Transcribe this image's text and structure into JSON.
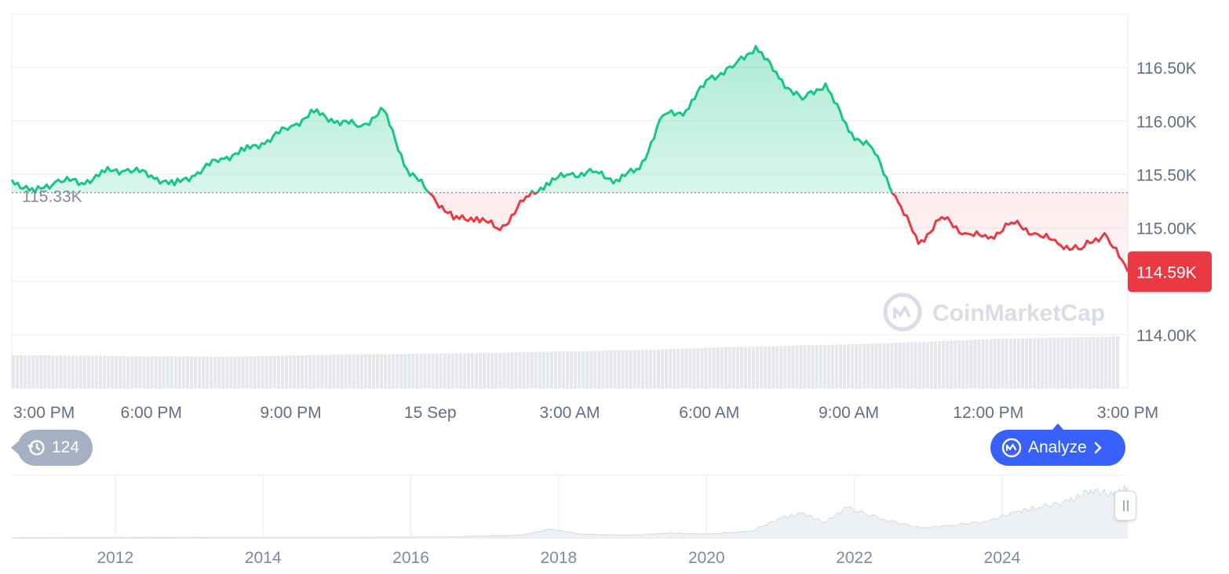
{
  "chart_data": {
    "type": "area",
    "asset_price_unit": "K",
    "y_axis": {
      "ticks": [
        "116.50K",
        "116.00K",
        "115.50K",
        "115.00K",
        "114.00K"
      ],
      "tick_values": [
        116.5,
        116.0,
        115.5,
        115.0,
        114.0
      ],
      "range": [
        113.5,
        117.0
      ],
      "position": "right"
    },
    "x_axis": {
      "ticks": [
        "3:00 PM",
        "6:00 PM",
        "9:00 PM",
        "15 Sep",
        "3:00 AM",
        "6:00 AM",
        "9:00 AM",
        "12:00 PM",
        "3:00 PM"
      ],
      "tick_hours": [
        0,
        3,
        6,
        9,
        12,
        15,
        18,
        21,
        24
      ],
      "range_hours": [
        0,
        24
      ]
    },
    "baseline": {
      "value": 115.33,
      "label": "115.33K"
    },
    "current": {
      "value": 114.59,
      "label": "114.59K"
    },
    "series": [
      {
        "x": [
          0,
          0.5,
          1,
          1.5,
          2,
          2.5,
          3,
          3.5,
          4,
          4.5,
          5,
          5.5,
          6,
          6.5,
          7,
          7.5,
          8,
          8.5,
          9,
          9.5,
          10,
          10.5,
          11,
          11.5,
          12,
          12.5,
          13,
          13.5,
          14,
          14.5,
          15,
          15.5,
          16,
          16.5,
          17,
          17.5,
          18,
          18.5,
          19,
          19.5,
          20,
          20.5,
          21,
          21.5,
          22,
          22.5,
          23,
          23.5,
          24
        ],
        "y": [
          115.45,
          115.33,
          115.45,
          115.42,
          115.52,
          115.55,
          115.49,
          115.4,
          115.52,
          115.65,
          115.72,
          115.82,
          115.95,
          116.08,
          116.0,
          115.95,
          116.1,
          115.55,
          115.32,
          115.08,
          115.1,
          114.98,
          115.25,
          115.42,
          115.5,
          115.52,
          115.45,
          115.55,
          116.05,
          116.1,
          116.4,
          116.5,
          116.7,
          116.4,
          116.2,
          116.35,
          115.9,
          115.75,
          115.3,
          114.85,
          115.1,
          114.95,
          114.9,
          115.05,
          114.95,
          114.85,
          114.8,
          114.95,
          114.59
        ]
      }
    ],
    "volume": {
      "relative_levels": [
        0.6,
        0.6,
        0.59,
        0.59,
        0.58,
        0.58,
        0.58,
        0.57,
        0.58,
        0.59,
        0.6,
        0.61,
        0.62,
        0.62,
        0.63,
        0.63,
        0.64,
        0.65,
        0.66,
        0.67,
        0.68,
        0.69,
        0.7,
        0.72,
        0.74,
        0.75,
        0.76,
        0.78,
        0.79,
        0.8,
        0.82,
        0.84,
        0.86,
        0.88,
        0.9,
        0.91,
        0.92,
        0.93,
        0.94
      ]
    },
    "navigator": {
      "years": [
        "2012",
        "2014",
        "2016",
        "2018",
        "2020",
        "2022",
        "2024"
      ],
      "year_values": [
        2012,
        2014,
        2016,
        2018,
        2020,
        2022,
        2024
      ],
      "range": [
        2010.6,
        2025.7
      ],
      "x": [
        2010.6,
        2013,
        2015,
        2016.5,
        2017.5,
        2017.9,
        2018.3,
        2019,
        2019.5,
        2020,
        2020.6,
        2021,
        2021.3,
        2021.6,
        2021.9,
        2022.4,
        2022.9,
        2023.3,
        2023.8,
        2024.2,
        2024.5,
        2024.9,
        2025.2,
        2025.5,
        2025.7
      ],
      "y": [
        0.0,
        0.01,
        0.01,
        0.02,
        0.05,
        0.16,
        0.07,
        0.05,
        0.09,
        0.07,
        0.12,
        0.36,
        0.45,
        0.28,
        0.55,
        0.34,
        0.18,
        0.23,
        0.3,
        0.48,
        0.56,
        0.66,
        0.88,
        0.78,
        0.92
      ]
    },
    "colors": {
      "up": "#16c784",
      "down": "#ea3943",
      "grid": "#eff2f5",
      "volume": "#e4e7ec"
    },
    "grid": true,
    "legend": "none"
  },
  "watermark": {
    "brand": "CoinMarketCap"
  },
  "controls": {
    "history_count": "124",
    "history_icon": "history-icon",
    "analyze_label": "Analyze",
    "analyze_icon": "coinmarketcap-logo-icon"
  }
}
